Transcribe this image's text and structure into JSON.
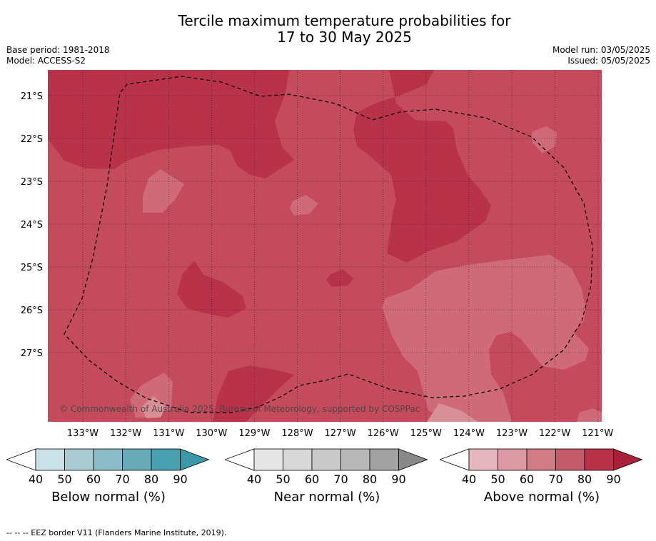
{
  "title": {
    "line1": "Tercile maximum temperature probabilities for",
    "line2": "17 to 30 May 2025"
  },
  "info": {
    "base_period": "Base period: 1981-2018",
    "model": "Model: ACCESS-S2",
    "model_run": "Model run: 03/05/2025",
    "issued": "Issued: 05/05/2025"
  },
  "map": {
    "lat_labels": [
      "21°S",
      "22°S",
      "23°S",
      "24°S",
      "25°S",
      "26°S",
      "27°S"
    ],
    "lon_labels": [
      "133°W",
      "132°W",
      "131°W",
      "130°W",
      "129°W",
      "128°W",
      "127°W",
      "126°W",
      "125°W",
      "124°W",
      "123°W",
      "122°W",
      "121°W"
    ],
    "copyright": "© Commonwealth of Australia 2025, Bureau of Meteorology, supported by COSPPac",
    "colors": {
      "above_90": "#b8334a",
      "above_80": "#c44b5c",
      "above_70": "#cf6b78",
      "above_60": "#d98f98",
      "eez_line": "#000000"
    }
  },
  "colorbars": [
    {
      "label": "Below normal (%)",
      "ticks": [
        "40",
        "50",
        "60",
        "70",
        "80",
        "90"
      ],
      "colors": [
        "#c9e2e8",
        "#a9cbd2",
        "#8bbcc7",
        "#6aaab8",
        "#48a0b0",
        "#3a98a8"
      ]
    },
    {
      "label": "Near normal (%)",
      "ticks": [
        "40",
        "50",
        "60",
        "70",
        "80",
        "90"
      ],
      "colors": [
        "#e6e6e6",
        "#d8d8d8",
        "#cacaca",
        "#b8b8b8",
        "#a2a2a2",
        "#888888"
      ]
    },
    {
      "label": "Above normal (%)",
      "ticks": [
        "40",
        "50",
        "60",
        "70",
        "80",
        "90"
      ],
      "colors": [
        "#e5b8c0",
        "#db99a3",
        "#d07c86",
        "#c45a6a",
        "#b8334a",
        "#a8203a"
      ]
    }
  ],
  "footnote": "-- -- -- EEZ border V11 (Flanders Marine Institute, 2019)."
}
